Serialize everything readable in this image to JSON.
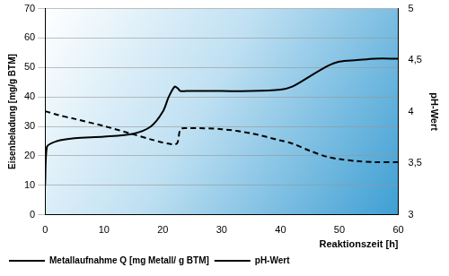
{
  "chart_data": {
    "type": "line",
    "x_label": "Reaktionszeit [h]",
    "y_label": "Eisenbeladung [mg/g BTM]",
    "y2_label": "pH-Wert",
    "x": [
      0,
      0.3,
      2,
      5,
      10,
      15,
      18,
      20,
      21,
      22,
      22.5,
      23,
      24,
      30,
      35,
      40,
      42,
      45,
      48,
      50,
      53,
      56,
      60
    ],
    "series": [
      {
        "name": "Metallaufnahme Q [mg Metall/ g BTM]",
        "color": "#000000",
        "line_style": "solid",
        "values": [
          10,
          23,
          25,
          26,
          26.5,
          27.5,
          30,
          35,
          40,
          43.5,
          43,
          42,
          42,
          42,
          42,
          42.5,
          43.5,
          47,
          50.5,
          52,
          52.5,
          53,
          53
        ]
      },
      {
        "name": "pH-Wert",
        "color": "#000000",
        "line_style": "dashed",
        "axis": "y2",
        "values": [
          4.0,
          4.0,
          3.97,
          3.93,
          3.86,
          3.78,
          3.73,
          3.7,
          3.69,
          3.68,
          3.7,
          3.83,
          3.84,
          3.83,
          3.79,
          3.72,
          3.69,
          3.62,
          3.56,
          3.54,
          3.52,
          3.51,
          3.51
        ]
      }
    ],
    "xlim": [
      0,
      60
    ],
    "xticks": [
      0,
      10,
      20,
      30,
      40,
      50,
      60
    ],
    "ylim": [
      0,
      70
    ],
    "yticks": [
      0,
      10,
      20,
      30,
      40,
      50,
      60,
      70
    ],
    "y2lim": [
      3,
      5
    ],
    "y2ticks": [
      3,
      {
        "value": 3.5,
        "label": "3,5"
      },
      4,
      {
        "value": 4.5,
        "label": "4,5"
      },
      5
    ],
    "grid": true,
    "legend": "bottom"
  }
}
